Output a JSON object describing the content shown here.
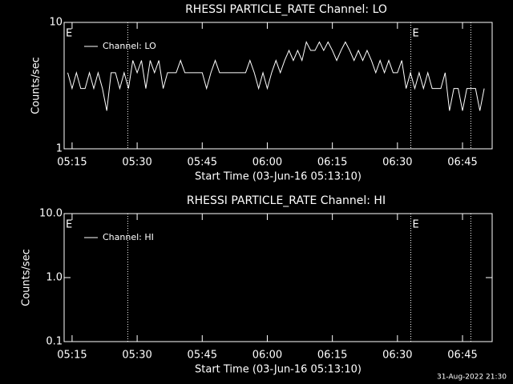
{
  "chart_data": [
    {
      "type": "line",
      "title": "RHESSI PARTICLE_RATE Channel: LO",
      "ylabel": "Counts/sec",
      "xlabel": "Start Time (03-Jun-16 05:13:10)",
      "log_y": true,
      "ylim": [
        1,
        10
      ],
      "yticks": [
        1,
        10
      ],
      "xlim": [
        "05:13:10",
        "06:51:50"
      ],
      "xticks": [
        "05:15",
        "05:30",
        "05:45",
        "06:00",
        "06:15",
        "06:30",
        "06:45"
      ],
      "legend": "upper left",
      "vlines": [
        "05:27:50",
        "06:33:05",
        "06:46:55"
      ],
      "annotations": [
        {
          "x": "05:13:10",
          "text": "E"
        },
        {
          "x": "06:33:05",
          "text": "E"
        }
      ],
      "series": [
        {
          "name": "Channel: LO",
          "color": "#ffffff",
          "x": [
            "05:14",
            "05:15",
            "05:16",
            "05:17",
            "05:18",
            "05:19",
            "05:20",
            "05:21",
            "05:22",
            "05:23",
            "05:24",
            "05:25",
            "05:26",
            "05:27",
            "05:28",
            "05:29",
            "05:30",
            "05:31",
            "05:32",
            "05:33",
            "05:34",
            "05:35",
            "05:36",
            "05:37",
            "05:38",
            "05:39",
            "05:40",
            "05:41",
            "05:42",
            "05:43",
            "05:44",
            "05:45",
            "05:46",
            "05:47",
            "05:48",
            "05:49",
            "05:50",
            "05:51",
            "05:52",
            "05:53",
            "05:54",
            "05:55",
            "05:56",
            "05:57",
            "05:58",
            "05:59",
            "06:00",
            "06:01",
            "06:02",
            "06:03",
            "06:04",
            "06:05",
            "06:06",
            "06:07",
            "06:08",
            "06:09",
            "06:10",
            "06:11",
            "06:12",
            "06:13",
            "06:14",
            "06:15",
            "06:16",
            "06:17",
            "06:18",
            "06:19",
            "06:20",
            "06:21",
            "06:22",
            "06:23",
            "06:24",
            "06:25",
            "06:26",
            "06:27",
            "06:28",
            "06:29",
            "06:30",
            "06:31",
            "06:32",
            "06:33",
            "06:34",
            "06:35",
            "06:36",
            "06:37",
            "06:38",
            "06:39",
            "06:40",
            "06:41",
            "06:42",
            "06:43",
            "06:44",
            "06:45",
            "06:46",
            "06:47",
            "06:48",
            "06:49",
            "06:50"
          ],
          "values": [
            4,
            3,
            4,
            3,
            3,
            4,
            3,
            4,
            3,
            2,
            4,
            4,
            3,
            4,
            3,
            5,
            4,
            5,
            3,
            5,
            4,
            5,
            3,
            4,
            4,
            4,
            5,
            4,
            4,
            4,
            4,
            4,
            3,
            4,
            5,
            4,
            4,
            4,
            4,
            4,
            4,
            4,
            5,
            4,
            3,
            4,
            3,
            4,
            5,
            4,
            5,
            6,
            5,
            6,
            5,
            7,
            6,
            6,
            7,
            6,
            7,
            6,
            5,
            6,
            7,
            6,
            5,
            6,
            5,
            6,
            5,
            4,
            5,
            4,
            5,
            4,
            4,
            5,
            3,
            4,
            3,
            4,
            3,
            4,
            3,
            3,
            3,
            4,
            2,
            3,
            3,
            2,
            3,
            3,
            3,
            2,
            3
          ]
        }
      ]
    },
    {
      "type": "line",
      "title": "RHESSI PARTICLE_RATE Channel: HI",
      "ylabel": "Counts/sec",
      "xlabel": "Start Time (03-Jun-16 05:13:10)",
      "log_y": true,
      "ylim": [
        0.1,
        10
      ],
      "yticks": [
        0.1,
        {
          "value": 1,
          "label": "1.0"
        },
        {
          "value": 10,
          "label": "10.0"
        }
      ],
      "xlim": [
        "05:13:10",
        "06:51:50"
      ],
      "xticks": [
        "05:15",
        "05:30",
        "05:45",
        "06:00",
        "06:15",
        "06:30",
        "06:45"
      ],
      "legend": "upper left",
      "vlines": [
        "05:27:50",
        "06:33:05",
        "06:46:55"
      ],
      "annotations": [
        {
          "x": "05:13:10",
          "text": "E"
        },
        {
          "x": "06:33:05",
          "text": "E"
        }
      ],
      "series": [
        {
          "name": "Channel: HI",
          "color": "#ffffff",
          "x": [],
          "values": []
        }
      ]
    }
  ],
  "footer": "31-Aug-2022 21:30"
}
